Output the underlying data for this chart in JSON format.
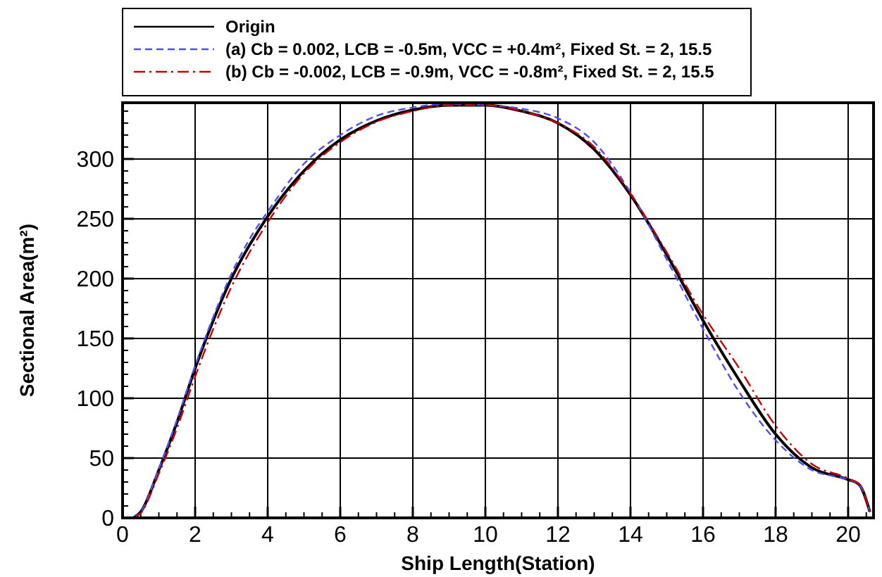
{
  "chart_data": {
    "type": "line",
    "xlabel": "Ship Length(Station)",
    "ylabel": "Sectional Area(m²)",
    "xlim": [
      0,
      20.7
    ],
    "ylim": [
      0,
      347
    ],
    "xticks": [
      0,
      {
        "value": 0.5,
        "label": null
      },
      {
        "value": 1,
        "label": null
      },
      {
        "value": 1.5,
        "label": null
      },
      2,
      {
        "value": 2.5,
        "label": null
      },
      {
        "value": 3,
        "label": null
      },
      {
        "value": 3.5,
        "label": null
      },
      4,
      {
        "value": 4.5,
        "label": null
      },
      {
        "value": 5,
        "label": null
      },
      {
        "value": 5.5,
        "label": null
      },
      6,
      {
        "value": 6.5,
        "label": null
      },
      {
        "value": 7,
        "label": null
      },
      {
        "value": 7.5,
        "label": null
      },
      8,
      {
        "value": 8.5,
        "label": null
      },
      {
        "value": 9,
        "label": null
      },
      {
        "value": 9.5,
        "label": null
      },
      10,
      {
        "value": 10.5,
        "label": null
      },
      {
        "value": 11,
        "label": null
      },
      {
        "value": 11.5,
        "label": null
      },
      12,
      {
        "value": 12.5,
        "label": null
      },
      {
        "value": 13,
        "label": null
      },
      {
        "value": 13.5,
        "label": null
      },
      14,
      {
        "value": 14.5,
        "label": null
      },
      {
        "value": 15,
        "label": null
      },
      {
        "value": 15.5,
        "label": null
      },
      16,
      {
        "value": 16.5,
        "label": null
      },
      {
        "value": 17,
        "label": null
      },
      {
        "value": 17.5,
        "label": null
      },
      18,
      {
        "value": 18.5,
        "label": null
      },
      {
        "value": 19,
        "label": null
      },
      {
        "value": 19.5,
        "label": null
      },
      20,
      {
        "value": 20.5,
        "label": null
      }
    ],
    "yticks": [
      0,
      {
        "value": 10,
        "label": null
      },
      {
        "value": 20,
        "label": null
      },
      {
        "value": 30,
        "label": null
      },
      {
        "value": 40,
        "label": null
      },
      50,
      {
        "value": 60,
        "label": null
      },
      {
        "value": 70,
        "label": null
      },
      {
        "value": 80,
        "label": null
      },
      {
        "value": 90,
        "label": null
      },
      100,
      {
        "value": 110,
        "label": null
      },
      {
        "value": 120,
        "label": null
      },
      {
        "value": 130,
        "label": null
      },
      {
        "value": 140,
        "label": null
      },
      150,
      {
        "value": 160,
        "label": null
      },
      {
        "value": 170,
        "label": null
      },
      {
        "value": 180,
        "label": null
      },
      {
        "value": 190,
        "label": null
      },
      200,
      {
        "value": 210,
        "label": null
      },
      {
        "value": 220,
        "label": null
      },
      {
        "value": 230,
        "label": null
      },
      {
        "value": 240,
        "label": null
      },
      250,
      {
        "value": 260,
        "label": null
      },
      {
        "value": 270,
        "label": null
      },
      {
        "value": 280,
        "label": null
      },
      {
        "value": 290,
        "label": null
      },
      300,
      {
        "value": 310,
        "label": null
      },
      {
        "value": 320,
        "label": null
      },
      {
        "value": 330,
        "label": null
      },
      {
        "value": 340,
        "label": null
      }
    ],
    "grid": true,
    "legend": "top",
    "marker": "none",
    "x": [
      0.3,
      0.5,
      1,
      1.5,
      2,
      2.5,
      3,
      3.5,
      4,
      5,
      6,
      7,
      8,
      9,
      10,
      11,
      12,
      13,
      14,
      15,
      16,
      17,
      18,
      19,
      20,
      20.3,
      20.6
    ],
    "series": [
      {
        "name": "Origin",
        "color": "#000000",
        "line_style": "solid",
        "values": [
          0,
          5,
          40,
          80,
          125,
          165,
          200,
          228,
          252,
          290,
          316,
          332,
          341,
          345,
          345,
          340,
          330,
          308,
          270,
          220,
          165,
          115,
          70,
          42,
          32,
          28,
          5
        ]
      },
      {
        "name": "(a) Cb = 0.002, LCB = -0.5m, VCC = +0.4m², Fixed St. = 2, 15.5",
        "color": "#4d4dff",
        "line_style": "dashed",
        "values": [
          0,
          5,
          41,
          82,
          127,
          168,
          204,
          233,
          256,
          296,
          320,
          336,
          343,
          346,
          345,
          342,
          334,
          314,
          272,
          216,
          158,
          105,
          65,
          40,
          32,
          28,
          5
        ]
      },
      {
        "name": "(b) Cb = -0.002, LCB = -0.9m, VCC = -0.8m², Fixed St. = 2, 15.5",
        "color": "#cc0000",
        "line_style": "dashdot",
        "values": [
          0,
          4,
          37,
          75,
          118,
          158,
          193,
          222,
          247,
          288,
          314,
          331,
          340,
          345,
          345,
          340,
          330,
          310,
          271,
          222,
          170,
          125,
          77,
          45,
          33,
          28,
          5
        ]
      }
    ]
  }
}
